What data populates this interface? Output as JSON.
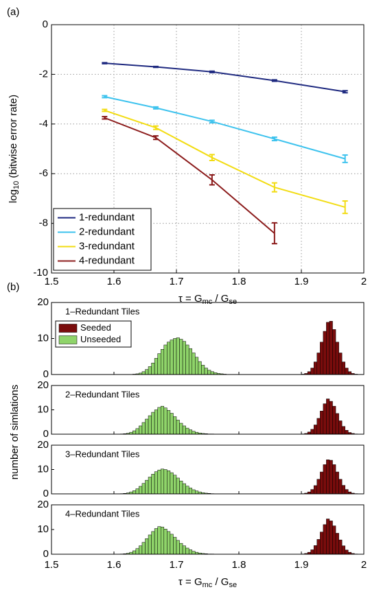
{
  "chart_data": [
    {
      "type": "line",
      "panel": "(a)",
      "xlabel": [
        "τ = G",
        "mc",
        " / G",
        "se"
      ],
      "ylabel": [
        "log",
        "10",
        " (bitwise error rate)"
      ],
      "x": [
        1.585,
        1.667,
        1.757,
        1.857,
        1.97
      ],
      "xlim": [
        1.5,
        2
      ],
      "xticks": [
        1.5,
        1.6,
        1.7,
        1.8,
        1.9,
        2
      ],
      "ylim": [
        -10,
        0
      ],
      "yticks": [
        -10,
        -8,
        -6,
        -4,
        -2,
        0
      ],
      "grid": true,
      "legend": "lower left",
      "series": [
        {
          "name": "1-redundant",
          "color": "#1f2a80",
          "values": [
            -1.55,
            -1.7,
            -1.9,
            -2.25,
            -2.7
          ],
          "errors": [
            0.02,
            0.02,
            0.03,
            0.03,
            0.04
          ]
        },
        {
          "name": "2-redundant",
          "color": "#3ec3ee",
          "values": [
            -2.9,
            -3.35,
            -3.9,
            -4.6,
            -5.4
          ],
          "errors": [
            0.04,
            0.04,
            0.05,
            0.07,
            0.15
          ]
        },
        {
          "name": "3-redundant",
          "color": "#f2dc12",
          "values": [
            -3.45,
            -4.15,
            -5.35,
            -6.55,
            -7.35
          ],
          "errors": [
            0.04,
            0.07,
            0.12,
            0.18,
            0.25
          ]
        },
        {
          "name": "4-redundant",
          "color": "#8b1a1a",
          "values": [
            -3.75,
            -4.55,
            -6.25,
            -8.4,
            null
          ],
          "errors": [
            0.05,
            0.07,
            0.2,
            0.42,
            null
          ]
        }
      ]
    },
    {
      "type": "histogram",
      "panel": "(b)",
      "title": "1–Redundant Tiles",
      "ylabel": "number of simlations",
      "legend": "upper left",
      "xlim": [
        1.5,
        2
      ],
      "ylim": [
        0,
        20
      ],
      "yticks": [
        0,
        10,
        20
      ],
      "series": [
        {
          "name": "Seeded",
          "color": "#7a0c0c",
          "bins": [
            1.9,
            1.905,
            1.91,
            1.915,
            1.92,
            1.925,
            1.93,
            1.935,
            1.94,
            1.945,
            1.95,
            1.955,
            1.96,
            1.965,
            1.97,
            1.975,
            1.98,
            1.985,
            1.99
          ],
          "values": [
            0.1,
            0.3,
            0.8,
            1.8,
            3.5,
            6,
            9,
            12,
            14.5,
            14.8,
            12.5,
            9,
            6,
            3.5,
            1.8,
            0.8,
            0.3,
            0.1
          ]
        },
        {
          "name": "Unseeded",
          "color": "#8fd46a",
          "bins": [
            1.63,
            1.635,
            1.64,
            1.645,
            1.65,
            1.655,
            1.66,
            1.665,
            1.67,
            1.675,
            1.68,
            1.685,
            1.69,
            1.695,
            1.7,
            1.705,
            1.71,
            1.715,
            1.72,
            1.725,
            1.73,
            1.735,
            1.74,
            1.745,
            1.75,
            1.755,
            1.76,
            1.765,
            1.77,
            1.775,
            1.78
          ],
          "values": [
            0.1,
            0.2,
            0.4,
            0.8,
            1.4,
            2.2,
            3.2,
            4.5,
            5.8,
            7,
            8.2,
            9,
            9.6,
            10,
            10.2,
            9.8,
            9.2,
            8.2,
            7.2,
            6,
            4.8,
            3.6,
            2.6,
            1.8,
            1.2,
            0.8,
            0.5,
            0.3,
            0.2,
            0.1
          ]
        }
      ]
    },
    {
      "type": "histogram",
      "title": "2–Redundant Tiles",
      "xlim": [
        1.5,
        2
      ],
      "ylim": [
        0,
        20
      ],
      "yticks": [
        0,
        10,
        20
      ],
      "series": [
        {
          "name": "Seeded",
          "color": "#7a0c0c",
          "bins": [
            1.9,
            1.905,
            1.91,
            1.915,
            1.92,
            1.925,
            1.93,
            1.935,
            1.94,
            1.945,
            1.95,
            1.955,
            1.96,
            1.965,
            1.97,
            1.975,
            1.98,
            1.985,
            1.99
          ],
          "values": [
            0.1,
            0.3,
            0.9,
            2,
            3.8,
            6.5,
            9.5,
            12.5,
            14.5,
            13.5,
            11.5,
            8.5,
            5.5,
            3.2,
            1.6,
            0.7,
            0.3,
            0.1
          ]
        },
        {
          "name": "Unseeded",
          "color": "#8fd46a",
          "bins": [
            1.61,
            1.615,
            1.62,
            1.625,
            1.63,
            1.635,
            1.64,
            1.645,
            1.65,
            1.655,
            1.66,
            1.665,
            1.67,
            1.675,
            1.68,
            1.685,
            1.69,
            1.695,
            1.7,
            1.705,
            1.71,
            1.715,
            1.72,
            1.725,
            1.73,
            1.735,
            1.74,
            1.745,
            1.75,
            1.755,
            1.76
          ],
          "values": [
            0.1,
            0.2,
            0.4,
            0.8,
            1.4,
            2.3,
            3.4,
            4.8,
            6.2,
            7.6,
            9,
            10,
            11,
            11.5,
            10.8,
            9.8,
            8.6,
            7.2,
            5.8,
            4.5,
            3.4,
            2.5,
            1.8,
            1.2,
            0.8,
            0.5,
            0.3,
            0.2,
            0.1,
            0.1
          ]
        }
      ]
    },
    {
      "type": "histogram",
      "title": "3–Redundant Tiles",
      "xlim": [
        1.5,
        2
      ],
      "ylim": [
        0,
        20
      ],
      "yticks": [
        0,
        10,
        20
      ],
      "series": [
        {
          "name": "Seeded",
          "color": "#7a0c0c",
          "bins": [
            1.9,
            1.905,
            1.91,
            1.915,
            1.92,
            1.925,
            1.93,
            1.935,
            1.94,
            1.945,
            1.95,
            1.955,
            1.96,
            1.965,
            1.97,
            1.975,
            1.98,
            1.985,
            1.99
          ],
          "values": [
            0.1,
            0.3,
            0.8,
            1.8,
            3.4,
            6,
            9,
            12,
            14,
            13.8,
            12,
            9,
            6,
            3.5,
            1.8,
            0.8,
            0.3,
            0.1
          ]
        },
        {
          "name": "Unseeded",
          "color": "#8fd46a",
          "bins": [
            1.61,
            1.615,
            1.62,
            1.625,
            1.63,
            1.635,
            1.64,
            1.645,
            1.65,
            1.655,
            1.66,
            1.665,
            1.67,
            1.675,
            1.68,
            1.685,
            1.69,
            1.695,
            1.7,
            1.705,
            1.71,
            1.715,
            1.72,
            1.725,
            1.73,
            1.735,
            1.74,
            1.745,
            1.75,
            1.755,
            1.76
          ],
          "values": [
            0.1,
            0.2,
            0.4,
            0.8,
            1.3,
            2.1,
            3.1,
            4.3,
            5.6,
            6.9,
            8.1,
            9.1,
            9.8,
            10.2,
            10,
            9.5,
            8.7,
            7.7,
            6.5,
            5.3,
            4.2,
            3.2,
            2.4,
            1.7,
            1.2,
            0.8,
            0.5,
            0.3,
            0.2,
            0.1
          ]
        }
      ]
    },
    {
      "type": "histogram",
      "title": "4–Redundant Tiles",
      "xlabel": [
        "τ = G",
        "mc",
        " / G",
        "se"
      ],
      "xlim": [
        1.5,
        2
      ],
      "xticks": [
        1.5,
        1.6,
        1.7,
        1.8,
        1.9,
        2
      ],
      "ylim": [
        0,
        20
      ],
      "yticks": [
        0,
        10,
        20
      ],
      "series": [
        {
          "name": "Seeded",
          "color": "#7a0c0c",
          "bins": [
            1.9,
            1.905,
            1.91,
            1.915,
            1.92,
            1.925,
            1.93,
            1.935,
            1.94,
            1.945,
            1.95,
            1.955,
            1.96,
            1.965,
            1.97,
            1.975,
            1.98,
            1.985,
            1.99
          ],
          "values": [
            0.1,
            0.3,
            0.8,
            1.8,
            3.5,
            6,
            9,
            12,
            14.3,
            13.5,
            11.5,
            8.5,
            5.8,
            3.4,
            1.7,
            0.8,
            0.3,
            0.1
          ]
        },
        {
          "name": "Unseeded",
          "color": "#8fd46a",
          "bins": [
            1.61,
            1.615,
            1.62,
            1.625,
            1.63,
            1.635,
            1.64,
            1.645,
            1.65,
            1.655,
            1.66,
            1.665,
            1.67,
            1.675,
            1.68,
            1.685,
            1.69,
            1.695,
            1.7,
            1.705,
            1.71,
            1.715,
            1.72,
            1.725,
            1.73,
            1.735,
            1.74,
            1.745,
            1.75,
            1.755,
            1.76
          ],
          "values": [
            0.1,
            0.2,
            0.4,
            0.8,
            1.4,
            2.3,
            3.4,
            4.8,
            6.3,
            7.8,
            9.2,
            10.4,
            11.2,
            11,
            10.2,
            9.2,
            8.1,
            6.9,
            5.6,
            4.4,
            3.4,
            2.5,
            1.8,
            1.2,
            0.8,
            0.5,
            0.3,
            0.2,
            0.1,
            0.1
          ]
        }
      ]
    }
  ]
}
